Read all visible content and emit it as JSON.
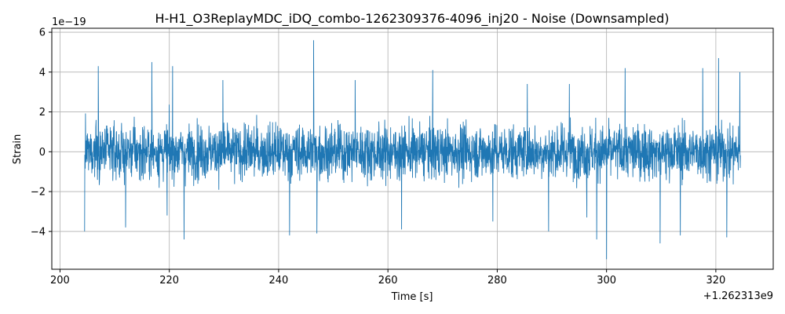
{
  "chart_data": {
    "type": "line",
    "title": "H-H1_O3ReplayMDC_iDQ_combo-1262309376-4096_inj20 - Noise (Downsampled)",
    "xlabel": "Time [s]",
    "ylabel": "Strain",
    "x_offset_label": "+1.262313e9",
    "y_scale_label": "1e−19",
    "xlim": [
      198.5,
      330.5
    ],
    "ylim": [
      -5.9,
      6.2
    ],
    "xticks": [
      200,
      220,
      240,
      260,
      280,
      300,
      320
    ],
    "xtick_labels": [
      "200",
      "220",
      "240",
      "260",
      "280",
      "300",
      "320"
    ],
    "yticks": [
      -4,
      -2,
      0,
      2,
      4,
      6
    ],
    "ytick_labels": [
      "−4",
      "−2",
      "0",
      "2",
      "4",
      "6"
    ],
    "grid": true,
    "series": [
      {
        "color": "#1f77b4",
        "x_range": [
          204.5,
          324.5
        ],
        "x": [
          204.5,
          206.6,
          207.0,
          212.0,
          216.8,
          219.6,
          220.6,
          222.7,
          229.8,
          242.0,
          246.4,
          247.0,
          254.0,
          262.5,
          268.2,
          279.2,
          285.5,
          289.4,
          293.2,
          296.4,
          298.2,
          300.0,
          303.4,
          309.8,
          313.5,
          317.6,
          320.5,
          322.0,
          324.4
        ],
        "y": [
          -4.0,
          1.6,
          4.3,
          -3.8,
          4.5,
          -3.2,
          4.3,
          -4.4,
          3.6,
          -4.2,
          5.6,
          -4.1,
          3.6,
          -3.9,
          4.1,
          -3.5,
          3.4,
          -4.0,
          3.4,
          -3.3,
          -4.4,
          -5.4,
          4.2,
          -4.6,
          -4.2,
          4.2,
          4.7,
          -4.3,
          4.0
        ]
      }
    ]
  }
}
